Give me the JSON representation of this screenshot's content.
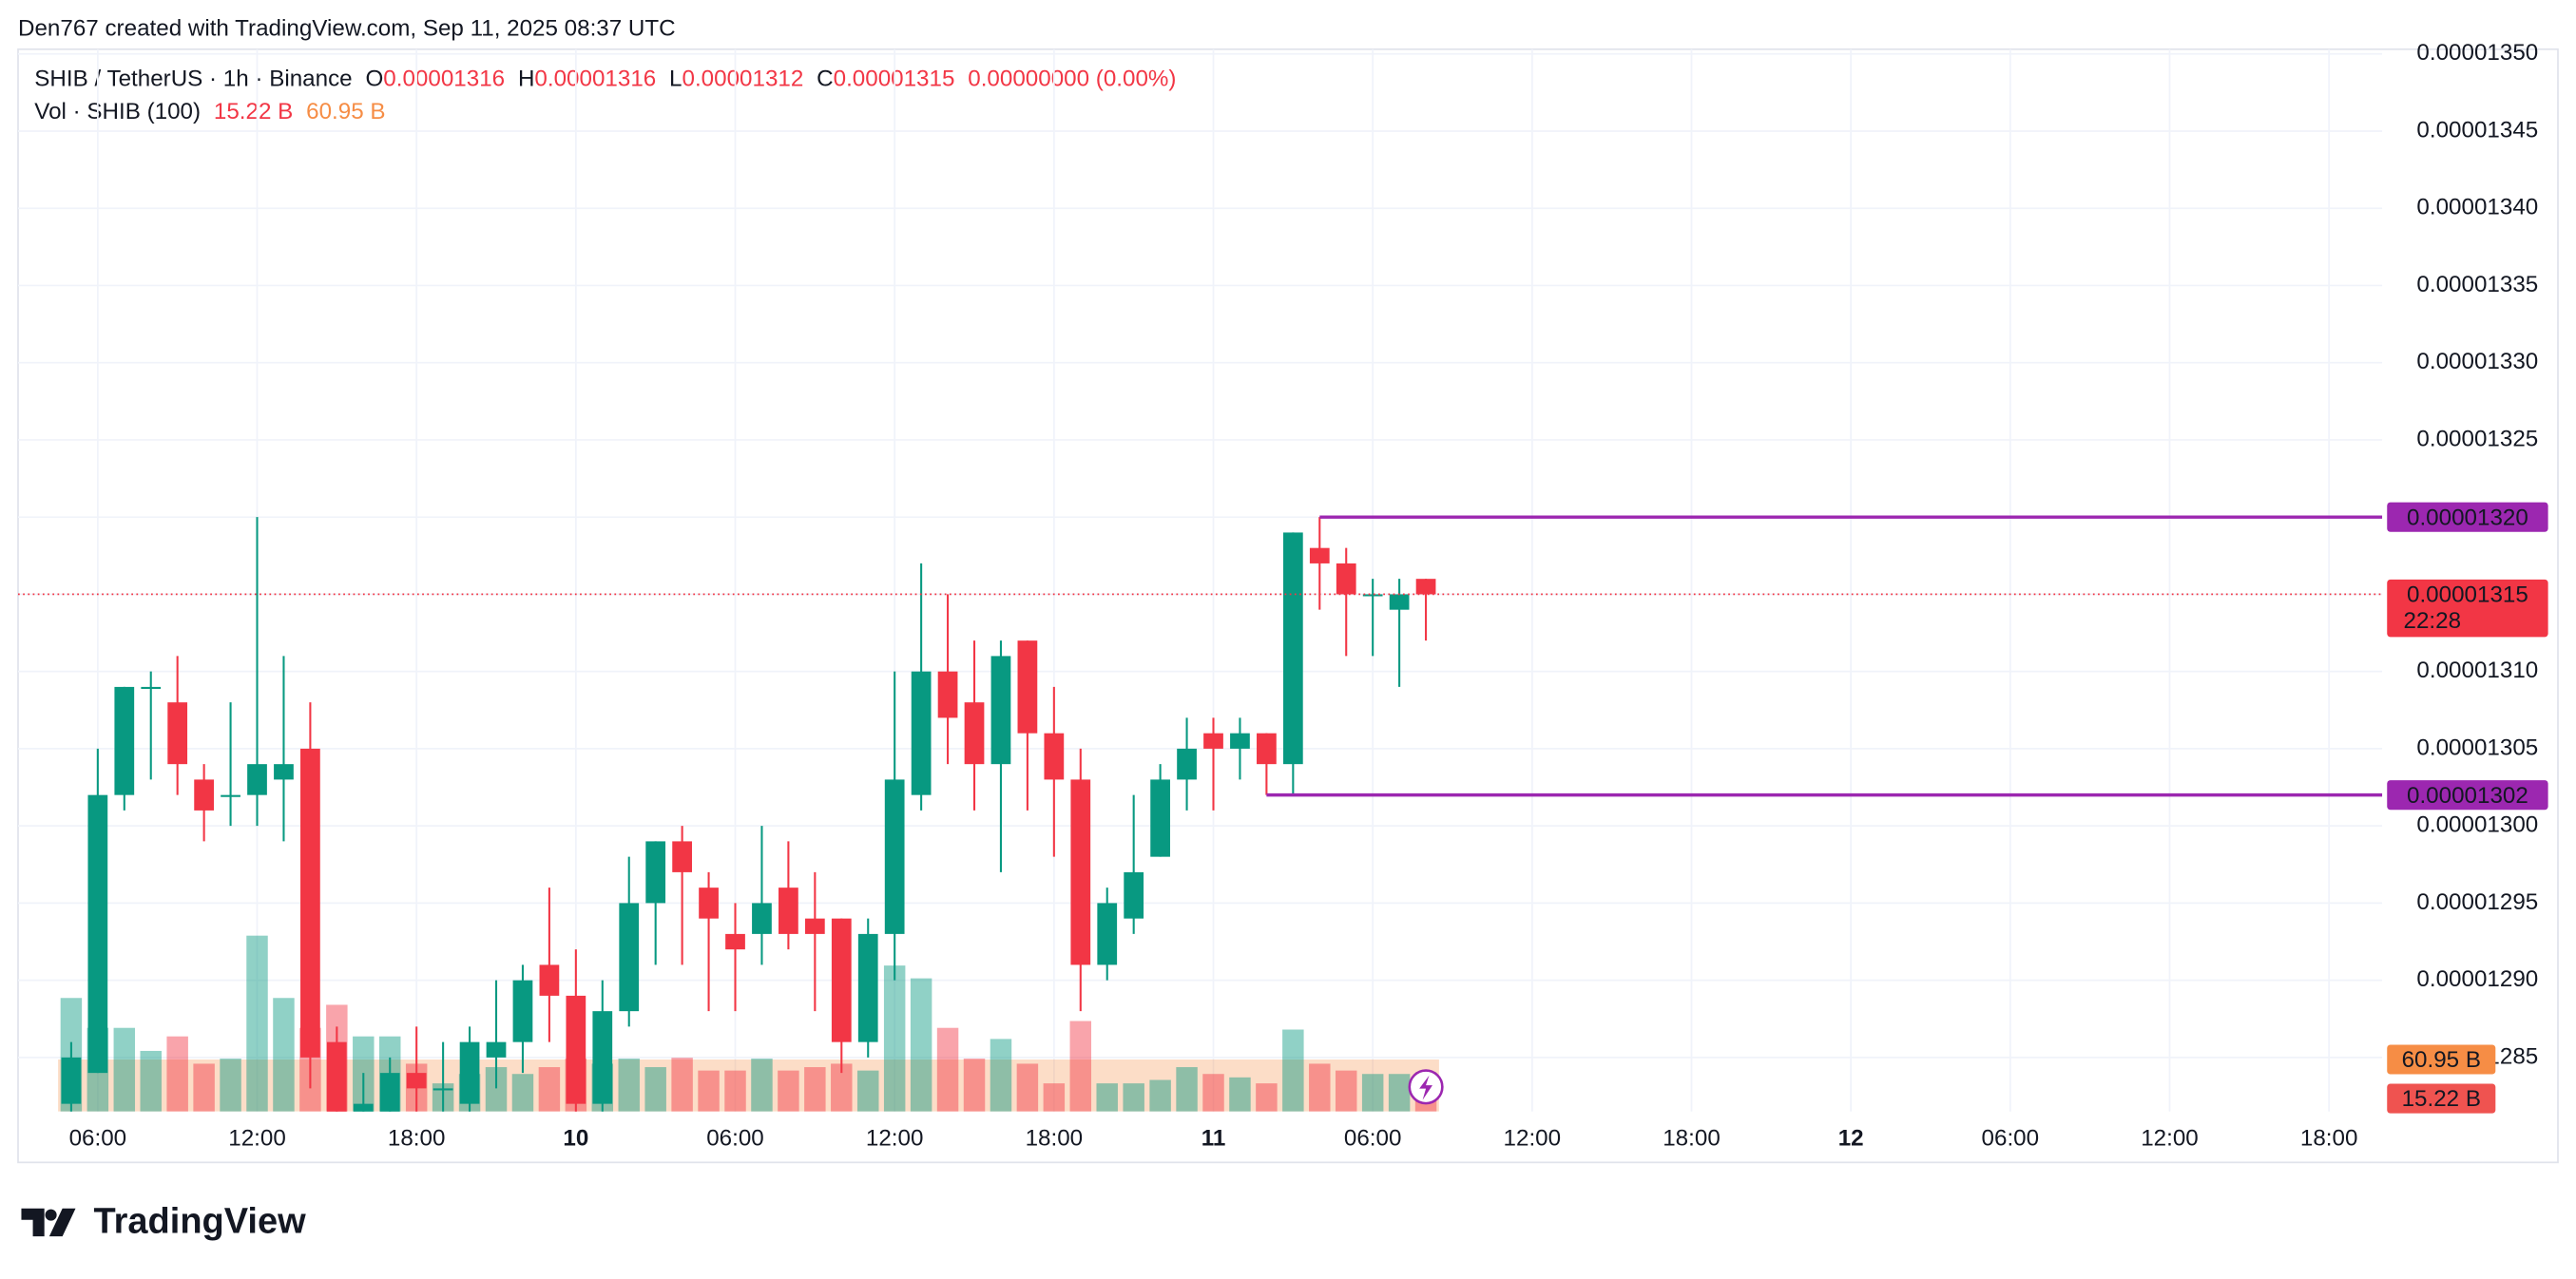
{
  "chart_data": {
    "type": "candlestick",
    "attribution": "Den767 created with TradingView.com, Sep 11, 2025 08:37 UTC",
    "brand": "TradingView",
    "header": {
      "source": "SHIB / TetherUS · 1h · Binance",
      "labels": [
        "O",
        "H",
        "L",
        "C"
      ],
      "change": "0.00000000 (0.00%)"
    },
    "x": [
      "2025-09-09 05:00",
      "2025-09-09 06:00",
      "2025-09-09 07:00",
      "2025-09-09 08:00",
      "2025-09-09 09:00",
      "2025-09-09 10:00",
      "2025-09-09 11:00",
      "2025-09-09 12:00",
      "2025-09-09 13:00",
      "2025-09-09 14:00",
      "2025-09-09 15:00",
      "2025-09-09 16:00",
      "2025-09-09 17:00",
      "2025-09-09 18:00",
      "2025-09-09 19:00",
      "2025-09-09 20:00",
      "2025-09-09 21:00",
      "2025-09-09 22:00",
      "2025-09-09 23:00",
      "2025-09-10 00:00",
      "2025-09-10 01:00",
      "2025-09-10 02:00",
      "2025-09-10 03:00",
      "2025-09-10 04:00",
      "2025-09-10 05:00",
      "2025-09-10 06:00",
      "2025-09-10 07:00",
      "2025-09-10 08:00",
      "2025-09-10 09:00",
      "2025-09-10 10:00",
      "2025-09-10 11:00",
      "2025-09-10 12:00",
      "2025-09-10 13:00",
      "2025-09-10 14:00",
      "2025-09-10 15:00",
      "2025-09-10 16:00",
      "2025-09-10 17:00",
      "2025-09-10 18:00",
      "2025-09-10 19:00",
      "2025-09-10 20:00",
      "2025-09-10 21:00",
      "2025-09-10 22:00",
      "2025-09-10 23:00",
      "2025-09-11 00:00",
      "2025-09-11 01:00",
      "2025-09-11 02:00",
      "2025-09-11 03:00",
      "2025-09-11 04:00",
      "2025-09-11 05:00",
      "2025-09-11 06:00",
      "2025-09-11 07:00",
      "2025-09-11 08:00"
    ],
    "open": [
      1.282e-05,
      1.284e-05,
      1.302e-05,
      1.309e-05,
      1.308e-05,
      1.303e-05,
      1.302e-05,
      1.302e-05,
      1.303e-05,
      1.305e-05,
      1.286e-05,
      1.281e-05,
      1.281e-05,
      1.284e-05,
      1.283e-05,
      1.282e-05,
      1.285e-05,
      1.286e-05,
      1.291e-05,
      1.289e-05,
      1.282e-05,
      1.288e-05,
      1.295e-05,
      1.299e-05,
      1.296e-05,
      1.293e-05,
      1.293e-05,
      1.296e-05,
      1.294e-05,
      1.294e-05,
      1.286e-05,
      1.293e-05,
      1.302e-05,
      1.31e-05,
      1.308e-05,
      1.304e-05,
      1.312e-05,
      1.306e-05,
      1.303e-05,
      1.291e-05,
      1.294e-05,
      1.298e-05,
      1.303e-05,
      1.306e-05,
      1.305e-05,
      1.306e-05,
      1.304e-05,
      1.318e-05,
      1.317e-05,
      1.315e-05,
      1.314e-05,
      1.316e-05
    ],
    "high": [
      1.286e-05,
      1.305e-05,
      1.309e-05,
      1.31e-05,
      1.311e-05,
      1.304e-05,
      1.308e-05,
      1.32e-05,
      1.311e-05,
      1.308e-05,
      1.287e-05,
      1.284e-05,
      1.285e-05,
      1.287e-05,
      1.286e-05,
      1.287e-05,
      1.29e-05,
      1.291e-05,
      1.296e-05,
      1.292e-05,
      1.29e-05,
      1.298e-05,
      1.299e-05,
      1.3e-05,
      1.297e-05,
      1.295e-05,
      1.3e-05,
      1.299e-05,
      1.297e-05,
      1.294e-05,
      1.294e-05,
      1.31e-05,
      1.317e-05,
      1.315e-05,
      1.312e-05,
      1.312e-05,
      1.312e-05,
      1.309e-05,
      1.305e-05,
      1.296e-05,
      1.302e-05,
      1.304e-05,
      1.307e-05,
      1.307e-05,
      1.307e-05,
      1.306e-05,
      1.319e-05,
      1.32e-05,
      1.318e-05,
      1.316e-05,
      1.316e-05,
      1.316e-05
    ],
    "low": [
      1.281e-05,
      1.284e-05,
      1.301e-05,
      1.303e-05,
      1.302e-05,
      1.299e-05,
      1.3e-05,
      1.3e-05,
      1.299e-05,
      1.283e-05,
      1.28e-05,
      1.28e-05,
      1.28e-05,
      1.28e-05,
      1.281e-05,
      1.28e-05,
      1.283e-05,
      1.284e-05,
      1.286e-05,
      1.281e-05,
      1.281e-05,
      1.287e-05,
      1.291e-05,
      1.291e-05,
      1.288e-05,
      1.288e-05,
      1.291e-05,
      1.292e-05,
      1.288e-05,
      1.284e-05,
      1.285e-05,
      1.29e-05,
      1.301e-05,
      1.304e-05,
      1.301e-05,
      1.297e-05,
      1.301e-05,
      1.298e-05,
      1.288e-05,
      1.29e-05,
      1.293e-05,
      1.298e-05,
      1.301e-05,
      1.301e-05,
      1.303e-05,
      1.302e-05,
      1.302e-05,
      1.314e-05,
      1.311e-05,
      1.311e-05,
      1.309e-05,
      1.312e-05
    ],
    "close": [
      1.285e-05,
      1.302e-05,
      1.309e-05,
      1.309e-05,
      1.304e-05,
      1.301e-05,
      1.302e-05,
      1.304e-05,
      1.304e-05,
      1.285e-05,
      1.281e-05,
      1.282e-05,
      1.284e-05,
      1.283e-05,
      1.283e-05,
      1.286e-05,
      1.286e-05,
      1.29e-05,
      1.289e-05,
      1.282e-05,
      1.288e-05,
      1.295e-05,
      1.299e-05,
      1.297e-05,
      1.294e-05,
      1.292e-05,
      1.295e-05,
      1.293e-05,
      1.293e-05,
      1.286e-05,
      1.293e-05,
      1.303e-05,
      1.31e-05,
      1.307e-05,
      1.304e-05,
      1.311e-05,
      1.306e-05,
      1.303e-05,
      1.291e-05,
      1.295e-05,
      1.297e-05,
      1.303e-05,
      1.305e-05,
      1.305e-05,
      1.306e-05,
      1.304e-05,
      1.319e-05,
      1.317e-05,
      1.315e-05,
      1.315e-05,
      1.315e-05,
      1.315e-05
    ],
    "up_color": "#089981",
    "down_color": "#f23645",
    "volume": {
      "name": "Vol · SHIB (100)",
      "values": [
        133,
        98,
        98,
        71,
        88,
        56,
        62,
        206,
        133,
        98,
        125,
        88,
        88,
        56,
        33,
        44,
        52,
        44,
        52,
        62,
        56,
        62,
        52,
        63,
        48,
        48,
        62,
        48,
        52,
        56,
        48,
        171,
        156,
        98,
        62,
        85,
        56,
        33,
        106,
        33,
        33,
        37,
        52,
        44,
        40,
        33,
        96,
        56,
        48,
        44,
        44,
        15.22
      ],
      "last_label": "15.22 B",
      "ma": 60.95,
      "ma_label": "60.95 B",
      "ma_color": "#f68d45"
    },
    "xlim": [
      "2025-09-09 03:00",
      "2025-09-12 20:00"
    ],
    "xticks": [
      {
        "value": "2025-09-09 06:00",
        "label": "06:00"
      },
      {
        "value": "2025-09-09 12:00",
        "label": "12:00"
      },
      {
        "value": "2025-09-09 18:00",
        "label": "18:00"
      },
      {
        "value": "2025-09-10 00:00",
        "label": "10"
      },
      {
        "value": "2025-09-10 06:00",
        "label": "06:00"
      },
      {
        "value": "2025-09-10 12:00",
        "label": "12:00"
      },
      {
        "value": "2025-09-10 18:00",
        "label": "18:00"
      },
      {
        "value": "2025-09-11 00:00",
        "label": "11"
      },
      {
        "value": "2025-09-11 06:00",
        "label": "06:00"
      },
      {
        "value": "2025-09-11 12:00",
        "label": "12:00"
      },
      {
        "value": "2025-09-11 18:00",
        "label": "18:00"
      },
      {
        "value": "2025-09-12 00:00",
        "label": "12"
      },
      {
        "value": "2025-09-12 06:00",
        "label": "06:00"
      },
      {
        "value": "2025-09-12 12:00",
        "label": "12:00"
      },
      {
        "value": "2025-09-12 18:00",
        "label": "18:00"
      }
    ],
    "ylim": [
      1.2815e-05,
      1.3503e-05
    ],
    "yticks": [
      {
        "value": 1.35e-05,
        "label": "0.00001350"
      },
      {
        "value": 1.345e-05,
        "label": "0.00001345"
      },
      {
        "value": 1.34e-05,
        "label": "0.00001340"
      },
      {
        "value": 1.335e-05,
        "label": "0.00001335"
      },
      {
        "value": 1.33e-05,
        "label": "0.00001330"
      },
      {
        "value": 1.325e-05,
        "label": "0.00001325"
      },
      {
        "value": 1.32e-05,
        "label": "0.00001320"
      },
      {
        "value": 1.315e-05,
        "label": "0.00001315"
      },
      {
        "value": 1.31e-05,
        "label": "0.00001310"
      },
      {
        "value": 1.305e-05,
        "label": "0.00001305"
      },
      {
        "value": 1.3e-05,
        "label": "0.00001300"
      },
      {
        "value": 1.295e-05,
        "label": "0.00001295"
      },
      {
        "value": 1.29e-05,
        "label": "0.00001290"
      },
      {
        "value": 1.285e-05,
        "label": "0.00001285"
      }
    ],
    "grid": true,
    "price_lines": [
      {
        "value": 1.32e-05,
        "label": "0.00001320",
        "color": "#9c27b0",
        "start": "2025-09-11 04:00"
      },
      {
        "value": 1.302e-05,
        "label": "0.00001302",
        "color": "#9c27b0",
        "start": "2025-09-11 02:00"
      }
    ],
    "last_price": {
      "value": 1.315e-05,
      "countdown": "22:28",
      "color": "#f23645"
    }
  }
}
